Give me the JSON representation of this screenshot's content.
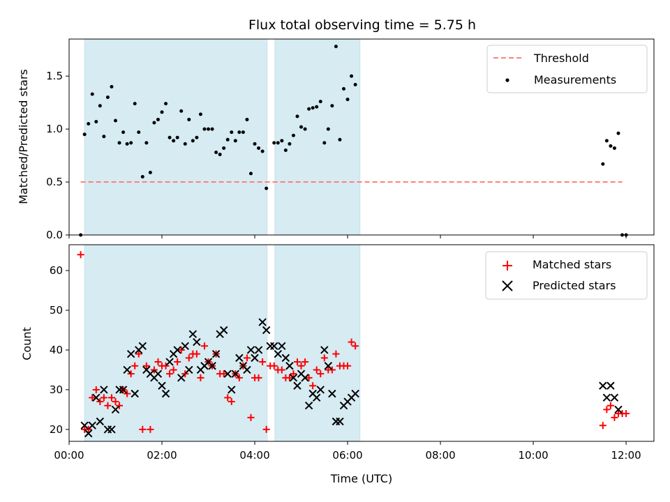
{
  "chart_data": [
    {
      "type": "scatter",
      "title": "Flux total observing time = 5.75 h",
      "xlabel": "",
      "ylabel": "Matched/Predicted stars",
      "xlim": [
        "00:00",
        "12:36"
      ],
      "ylim": [
        0,
        1.85
      ],
      "yticks": [
        "0.0",
        "0.5",
        "1.0",
        "1.5"
      ],
      "shaded_intervals": [
        [
          "00:20",
          "04:16"
        ],
        [
          "04:26",
          "06:16"
        ]
      ],
      "threshold": {
        "name": "Threshold",
        "value": 0.5,
        "x_range": [
          "00:15",
          "11:55"
        ],
        "color": "#ff7f7f"
      },
      "legend": {
        "placement": "top-right",
        "entries": [
          "Threshold",
          "Measurements"
        ]
      },
      "series": [
        {
          "name": "Measurements",
          "color": "#000000",
          "points": [
            [
              "00:15",
              0.0
            ],
            [
              "00:20",
              0.95
            ],
            [
              "00:25",
              1.05
            ],
            [
              "00:30",
              1.33
            ],
            [
              "00:35",
              1.07
            ],
            [
              "00:40",
              1.22
            ],
            [
              "00:45",
              0.93
            ],
            [
              "00:50",
              1.3
            ],
            [
              "00:55",
              1.4
            ],
            [
              "01:00",
              1.08
            ],
            [
              "01:05",
              0.87
            ],
            [
              "01:10",
              0.97
            ],
            [
              "01:15",
              0.86
            ],
            [
              "01:20",
              0.87
            ],
            [
              "01:25",
              1.24
            ],
            [
              "01:30",
              0.97
            ],
            [
              "01:35",
              0.55
            ],
            [
              "01:40",
              0.87
            ],
            [
              "01:45",
              0.59
            ],
            [
              "01:50",
              1.06
            ],
            [
              "01:55",
              1.09
            ],
            [
              "02:00",
              1.16
            ],
            [
              "02:05",
              1.24
            ],
            [
              "02:10",
              0.92
            ],
            [
              "02:15",
              0.89
            ],
            [
              "02:20",
              0.92
            ],
            [
              "02:25",
              1.17
            ],
            [
              "02:30",
              0.86
            ],
            [
              "02:35",
              1.09
            ],
            [
              "02:40",
              0.89
            ],
            [
              "02:45",
              0.92
            ],
            [
              "02:50",
              1.14
            ],
            [
              "02:55",
              1.0
            ],
            [
              "03:00",
              1.0
            ],
            [
              "03:05",
              1.0
            ],
            [
              "03:10",
              0.78
            ],
            [
              "03:15",
              0.76
            ],
            [
              "03:20",
              0.82
            ],
            [
              "03:25",
              0.9
            ],
            [
              "03:30",
              0.97
            ],
            [
              "03:35",
              0.89
            ],
            [
              "03:40",
              0.97
            ],
            [
              "03:45",
              0.97
            ],
            [
              "03:50",
              1.09
            ],
            [
              "03:55",
              0.58
            ],
            [
              "04:00",
              0.86
            ],
            [
              "04:05",
              0.82
            ],
            [
              "04:10",
              0.79
            ],
            [
              "04:15",
              0.44
            ],
            [
              "04:25",
              0.87
            ],
            [
              "04:30",
              0.87
            ],
            [
              "04:35",
              0.89
            ],
            [
              "04:40",
              0.8
            ],
            [
              "04:45",
              0.86
            ],
            [
              "04:50",
              0.94
            ],
            [
              "04:55",
              1.12
            ],
            [
              "05:00",
              1.02
            ],
            [
              "05:05",
              1.0
            ],
            [
              "05:10",
              1.19
            ],
            [
              "05:15",
              1.2
            ],
            [
              "05:20",
              1.21
            ],
            [
              "05:25",
              1.26
            ],
            [
              "05:30",
              0.87
            ],
            [
              "05:35",
              1.0
            ],
            [
              "05:40",
              1.22
            ],
            [
              "05:45",
              1.78
            ],
            [
              "05:50",
              0.9
            ],
            [
              "05:55",
              1.38
            ],
            [
              "06:00",
              1.28
            ],
            [
              "06:05",
              1.5
            ],
            [
              "06:10",
              1.42
            ],
            [
              "11:30",
              0.67
            ],
            [
              "11:35",
              0.89
            ],
            [
              "11:40",
              0.84
            ],
            [
              "11:45",
              0.82
            ],
            [
              "11:50",
              0.96
            ],
            [
              "11:55",
              0.0
            ],
            [
              "12:00",
              0.0
            ]
          ]
        }
      ]
    },
    {
      "type": "scatter",
      "title": "",
      "xlabel": "Time (UTC)",
      "ylabel": "Count",
      "xlim": [
        "00:00",
        "12:36"
      ],
      "ylim": [
        17,
        66.5
      ],
      "yticks": [
        "20",
        "30",
        "40",
        "50",
        "60"
      ],
      "xticks": [
        "00:00",
        "02:00",
        "04:00",
        "06:00",
        "08:00",
        "10:00",
        "12:00"
      ],
      "shaded_intervals": [
        [
          "00:20",
          "04:16"
        ],
        [
          "04:26",
          "06:16"
        ]
      ],
      "legend": {
        "placement": "top-right",
        "entries": [
          "Matched stars",
          "Predicted stars"
        ]
      },
      "series": [
        {
          "name": "Matched stars",
          "marker": "plus",
          "color": "#ff0000",
          "points": [
            [
              "00:15",
              64
            ],
            [
              "00:20",
              20
            ],
            [
              "00:25",
              20
            ],
            [
              "00:30",
              28
            ],
            [
              "00:35",
              30
            ],
            [
              "00:40",
              27
            ],
            [
              "00:45",
              28
            ],
            [
              "00:50",
              26
            ],
            [
              "00:55",
              28
            ],
            [
              "01:00",
              27
            ],
            [
              "01:05",
              26
            ],
            [
              "01:10",
              30
            ],
            [
              "01:15",
              29
            ],
            [
              "01:20",
              34
            ],
            [
              "01:25",
              36
            ],
            [
              "01:30",
              39
            ],
            [
              "01:35",
              20
            ],
            [
              "01:40",
              36
            ],
            [
              "01:45",
              20
            ],
            [
              "01:50",
              35
            ],
            [
              "01:55",
              37
            ],
            [
              "02:00",
              36
            ],
            [
              "02:05",
              36
            ],
            [
              "02:10",
              34
            ],
            [
              "02:15",
              35
            ],
            [
              "02:20",
              37
            ],
            [
              "02:25",
              40
            ],
            [
              "02:30",
              34
            ],
            [
              "02:35",
              38
            ],
            [
              "02:40",
              39
            ],
            [
              "02:45",
              39
            ],
            [
              "02:50",
              33
            ],
            [
              "02:55",
              41
            ],
            [
              "03:00",
              37
            ],
            [
              "03:05",
              36
            ],
            [
              "03:10",
              39
            ],
            [
              "03:15",
              34
            ],
            [
              "03:20",
              34
            ],
            [
              "03:25",
              28
            ],
            [
              "03:30",
              27
            ],
            [
              "03:35",
              34
            ],
            [
              "03:40",
              33
            ],
            [
              "03:45",
              36
            ],
            [
              "03:50",
              38
            ],
            [
              "03:55",
              23
            ],
            [
              "04:00",
              33
            ],
            [
              "04:05",
              33
            ],
            [
              "04:10",
              37
            ],
            [
              "04:15",
              20
            ],
            [
              "04:20",
              36
            ],
            [
              "04:25",
              36
            ],
            [
              "04:30",
              35
            ],
            [
              "04:35",
              35
            ],
            [
              "04:40",
              33
            ],
            [
              "04:45",
              33
            ],
            [
              "04:50",
              34
            ],
            [
              "04:55",
              37
            ],
            [
              "05:00",
              36
            ],
            [
              "05:05",
              37
            ],
            [
              "05:10",
              33
            ],
            [
              "05:15",
              31
            ],
            [
              "05:20",
              35
            ],
            [
              "05:25",
              34
            ],
            [
              "05:30",
              38
            ],
            [
              "05:35",
              35
            ],
            [
              "05:40",
              35
            ],
            [
              "05:45",
              39
            ],
            [
              "05:50",
              36
            ],
            [
              "05:55",
              36
            ],
            [
              "06:00",
              36
            ],
            [
              "06:05",
              42
            ],
            [
              "06:10",
              41
            ],
            [
              "11:30",
              21
            ],
            [
              "11:35",
              25
            ],
            [
              "11:40",
              26
            ],
            [
              "11:45",
              23
            ],
            [
              "11:50",
              24
            ],
            [
              "11:55",
              24
            ],
            [
              "12:00",
              24
            ]
          ]
        },
        {
          "name": "Predicted stars",
          "marker": "x",
          "color": "#000000",
          "points": [
            [
              "00:20",
              21
            ],
            [
              "00:25",
              19
            ],
            [
              "00:30",
              21
            ],
            [
              "00:35",
              28
            ],
            [
              "00:40",
              22
            ],
            [
              "00:45",
              30
            ],
            [
              "00:50",
              20
            ],
            [
              "00:55",
              20
            ],
            [
              "01:00",
              25
            ],
            [
              "01:05",
              30
            ],
            [
              "01:10",
              30
            ],
            [
              "01:15",
              35
            ],
            [
              "01:20",
              39
            ],
            [
              "01:25",
              29
            ],
            [
              "01:30",
              40
            ],
            [
              "01:35",
              41
            ],
            [
              "01:40",
              35
            ],
            [
              "01:45",
              34
            ],
            [
              "01:50",
              33
            ],
            [
              "01:55",
              34
            ],
            [
              "02:00",
              31
            ],
            [
              "02:05",
              29
            ],
            [
              "02:10",
              37
            ],
            [
              "02:15",
              39
            ],
            [
              "02:20",
              40
            ],
            [
              "02:25",
              33
            ],
            [
              "02:30",
              41
            ],
            [
              "02:35",
              35
            ],
            [
              "02:40",
              44
            ],
            [
              "02:45",
              42
            ],
            [
              "02:50",
              35
            ],
            [
              "02:55",
              36
            ],
            [
              "03:00",
              37
            ],
            [
              "03:05",
              36
            ],
            [
              "03:10",
              39
            ],
            [
              "03:15",
              44
            ],
            [
              "03:20",
              45
            ],
            [
              "03:25",
              34
            ],
            [
              "03:30",
              30
            ],
            [
              "03:35",
              34
            ],
            [
              "03:40",
              38
            ],
            [
              "03:45",
              36
            ],
            [
              "03:50",
              35
            ],
            [
              "03:55",
              40
            ],
            [
              "04:00",
              38
            ],
            [
              "04:05",
              40
            ],
            [
              "04:10",
              47
            ],
            [
              "04:15",
              45
            ],
            [
              "04:20",
              41
            ],
            [
              "04:25",
              41
            ],
            [
              "04:30",
              39
            ],
            [
              "04:35",
              41
            ],
            [
              "04:40",
              38
            ],
            [
              "04:45",
              36
            ],
            [
              "04:50",
              33
            ],
            [
              "04:55",
              31
            ],
            [
              "05:00",
              34
            ],
            [
              "05:05",
              33
            ],
            [
              "05:10",
              26
            ],
            [
              "05:15",
              29
            ],
            [
              "05:20",
              28
            ],
            [
              "05:25",
              30
            ],
            [
              "05:30",
              40
            ],
            [
              "05:35",
              36
            ],
            [
              "05:40",
              29
            ],
            [
              "05:45",
              22
            ],
            [
              "05:50",
              22
            ],
            [
              "05:55",
              26
            ],
            [
              "06:00",
              27
            ],
            [
              "06:05",
              28
            ],
            [
              "06:10",
              29
            ],
            [
              "11:30",
              31
            ],
            [
              "11:35",
              28
            ],
            [
              "11:40",
              31
            ],
            [
              "11:45",
              28
            ],
            [
              "11:50",
              25
            ]
          ]
        }
      ]
    }
  ]
}
